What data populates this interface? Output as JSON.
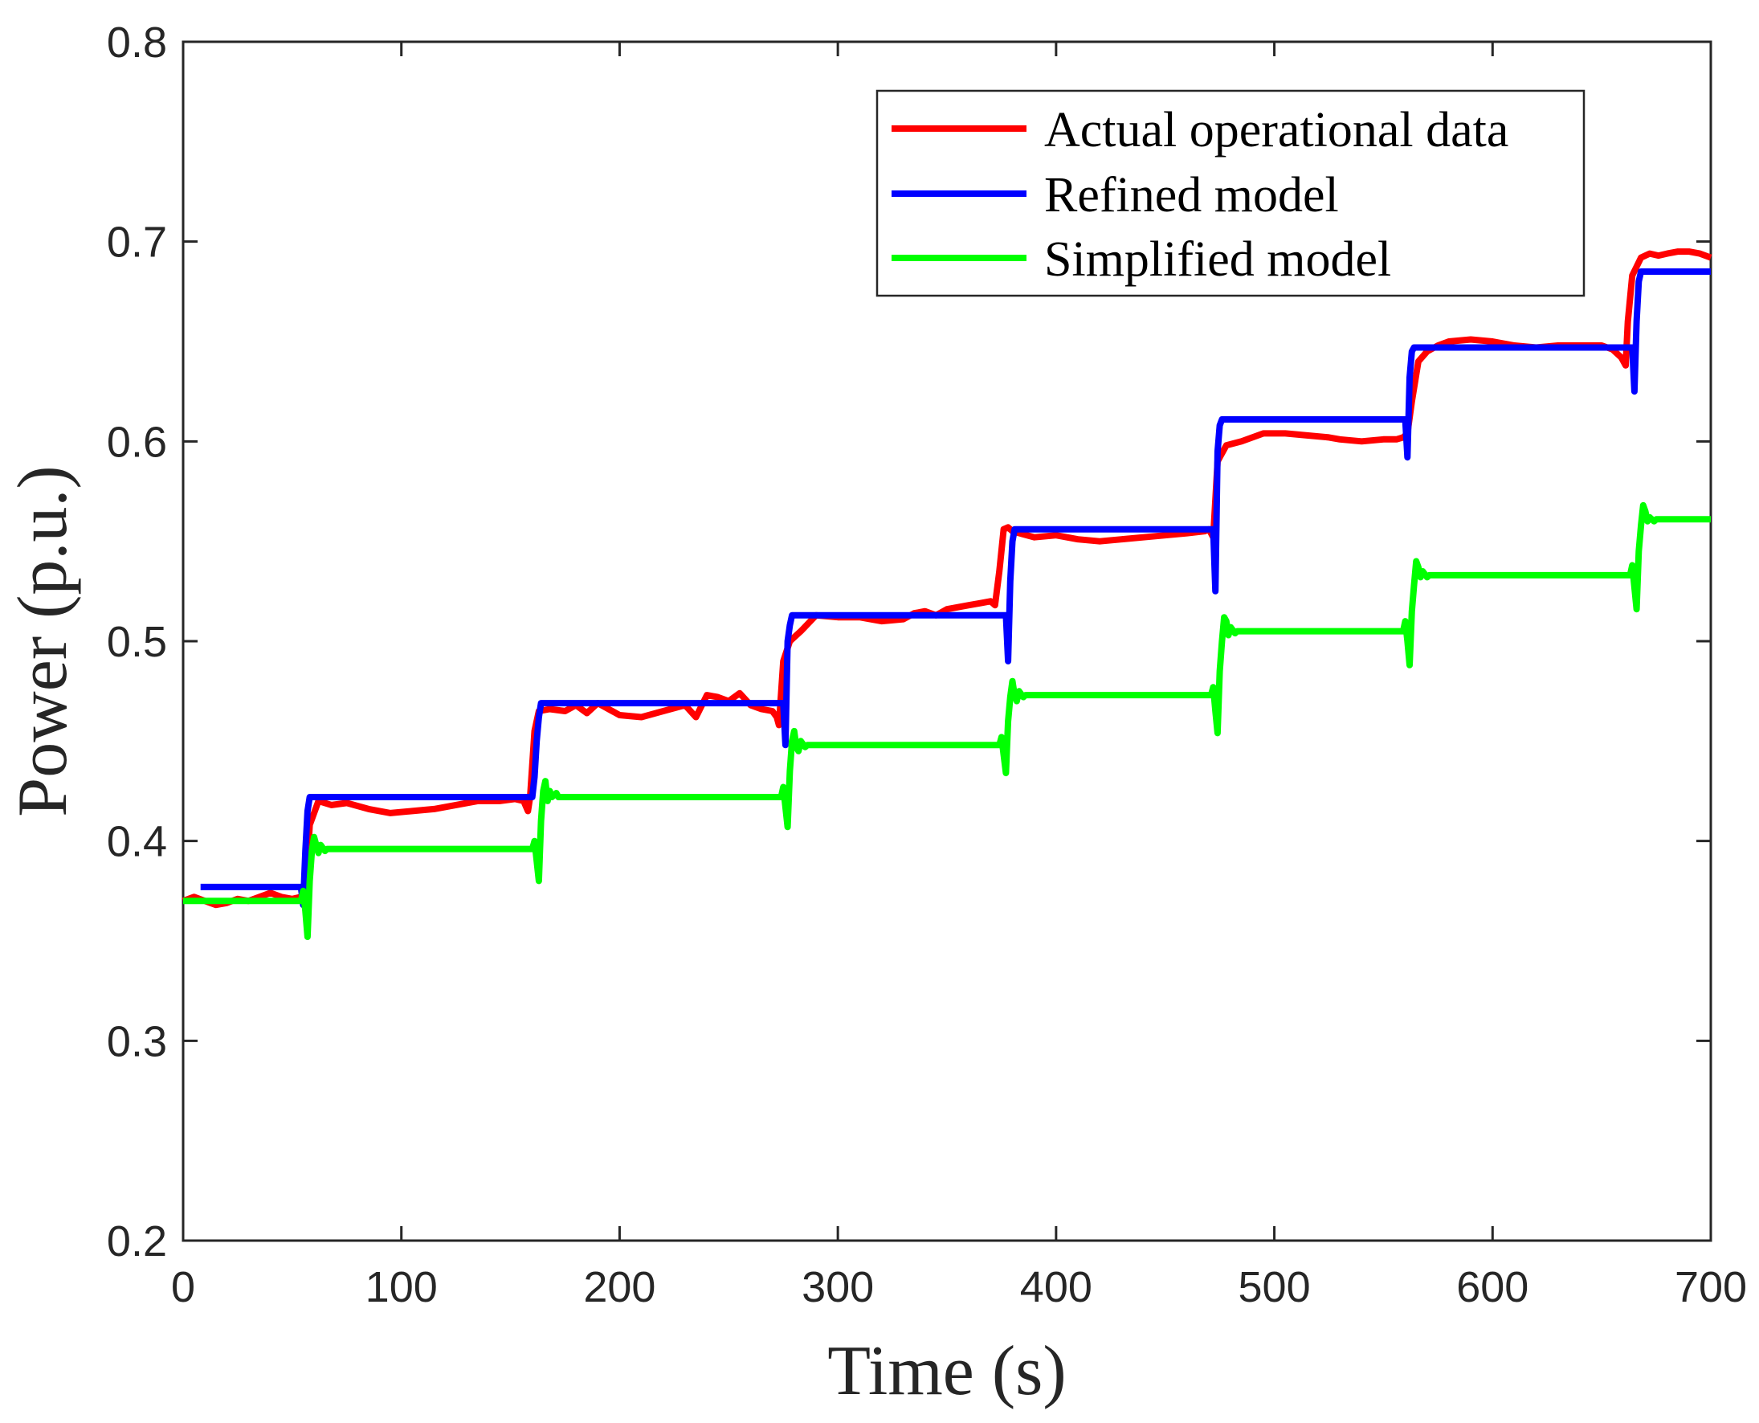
{
  "chart_data": {
    "type": "line",
    "title": "",
    "xlabel": "Time (s)",
    "ylabel": "Power (p.u.)",
    "xlim": [
      0,
      700
    ],
    "ylim": [
      0.2,
      0.8
    ],
    "xticks": [
      0,
      100,
      200,
      300,
      400,
      500,
      600,
      700
    ],
    "yticks": [
      0.2,
      0.3,
      0.4,
      0.5,
      0.6,
      0.7,
      0.8
    ],
    "xtick_labels": [
      "0",
      "100",
      "200",
      "300",
      "400",
      "500",
      "600",
      "700"
    ],
    "ytick_labels": [
      "0.2",
      "0.3",
      "0.4",
      "0.5",
      "0.6",
      "0.7",
      "0.8"
    ],
    "grid": false,
    "legend_position": "top-right",
    "series": [
      {
        "name": "Actual operational data",
        "color": "#ff0000",
        "x": [
          0,
          5,
          10,
          15,
          20,
          25,
          30,
          35,
          40,
          45,
          50,
          54,
          56,
          58,
          62,
          68,
          75,
          85,
          95,
          105,
          115,
          125,
          135,
          145,
          152,
          156,
          158,
          159,
          161,
          163,
          168,
          175,
          180,
          185,
          190,
          200,
          210,
          220,
          230,
          235,
          240,
          245,
          250,
          255,
          260,
          265,
          270,
          272,
          273,
          275,
          278,
          283,
          290,
          300,
          310,
          320,
          330,
          335,
          340,
          345,
          350,
          355,
          360,
          365,
          370,
          372,
          374,
          376,
          378,
          380,
          390,
          400,
          410,
          420,
          430,
          440,
          450,
          460,
          468,
          470,
          472,
          474,
          478,
          485,
          495,
          505,
          515,
          525,
          530,
          540,
          550,
          556,
          559,
          561,
          563,
          566,
          570,
          575,
          580,
          590,
          600,
          610,
          620,
          630,
          640,
          650,
          655,
          659,
          661,
          662,
          664,
          668,
          672,
          676,
          680,
          685,
          690,
          695,
          700
        ],
        "y": [
          0.37,
          0.372,
          0.37,
          0.368,
          0.369,
          0.371,
          0.37,
          0.372,
          0.374,
          0.372,
          0.371,
          0.372,
          0.37,
          0.408,
          0.42,
          0.418,
          0.419,
          0.416,
          0.414,
          0.415,
          0.416,
          0.418,
          0.42,
          0.42,
          0.421,
          0.42,
          0.415,
          0.422,
          0.455,
          0.465,
          0.466,
          0.465,
          0.468,
          0.464,
          0.469,
          0.463,
          0.462,
          0.465,
          0.468,
          0.462,
          0.473,
          0.472,
          0.47,
          0.474,
          0.468,
          0.466,
          0.465,
          0.462,
          0.458,
          0.49,
          0.5,
          0.505,
          0.513,
          0.512,
          0.512,
          0.51,
          0.511,
          0.514,
          0.515,
          0.513,
          0.516,
          0.517,
          0.518,
          0.519,
          0.52,
          0.518,
          0.535,
          0.556,
          0.557,
          0.555,
          0.552,
          0.553,
          0.551,
          0.55,
          0.551,
          0.552,
          0.553,
          0.554,
          0.555,
          0.556,
          0.552,
          0.59,
          0.598,
          0.6,
          0.604,
          0.604,
          0.603,
          0.602,
          0.601,
          0.6,
          0.601,
          0.601,
          0.602,
          0.604,
          0.62,
          0.64,
          0.645,
          0.648,
          0.65,
          0.651,
          0.65,
          0.648,
          0.647,
          0.648,
          0.648,
          0.648,
          0.646,
          0.642,
          0.638,
          0.66,
          0.683,
          0.692,
          0.694,
          0.693,
          0.694,
          0.695,
          0.695,
          0.694,
          0.692
        ]
      },
      {
        "name": "Refined model",
        "color": "#0000ff",
        "x": [
          8,
          54,
          55,
          56,
          57,
          58,
          160,
          161,
          162,
          163,
          164,
          275,
          276,
          277,
          278,
          279,
          377,
          378,
          379,
          380,
          381,
          472,
          473,
          474,
          475,
          476,
          560,
          561,
          562,
          563,
          564,
          664,
          665,
          666,
          667,
          668,
          700
        ],
        "y": [
          0.377,
          0.377,
          0.368,
          0.395,
          0.415,
          0.422,
          0.422,
          0.432,
          0.45,
          0.462,
          0.469,
          0.469,
          0.448,
          0.5,
          0.508,
          0.513,
          0.513,
          0.49,
          0.53,
          0.55,
          0.556,
          0.556,
          0.525,
          0.595,
          0.608,
          0.611,
          0.611,
          0.592,
          0.632,
          0.645,
          0.647,
          0.647,
          0.625,
          0.66,
          0.68,
          0.685,
          0.685
        ]
      },
      {
        "name": "Simplified model",
        "color": "#00ff00",
        "x": [
          0,
          54,
          55,
          56,
          57,
          58,
          59,
          60,
          61,
          62,
          63,
          65,
          66,
          160,
          161,
          162,
          163,
          164,
          165,
          166,
          167,
          168,
          169,
          171,
          172,
          274,
          275,
          276,
          277,
          278,
          279,
          280,
          281,
          282,
          283,
          285,
          286,
          374,
          375,
          376,
          377,
          378,
          379,
          380,
          381,
          382,
          383,
          385,
          386,
          471,
          472,
          473,
          474,
          475,
          476,
          477,
          478,
          479,
          480,
          482,
          483,
          559,
          560,
          561,
          562,
          563,
          564,
          565,
          566,
          567,
          568,
          570,
          571,
          663,
          664,
          665,
          666,
          667,
          668,
          669,
          670,
          671,
          672,
          674,
          675,
          700
        ],
        "y": [
          0.37,
          0.37,
          0.375,
          0.365,
          0.352,
          0.38,
          0.395,
          0.402,
          0.398,
          0.394,
          0.398,
          0.395,
          0.396,
          0.396,
          0.4,
          0.39,
          0.38,
          0.41,
          0.425,
          0.43,
          0.42,
          0.425,
          0.422,
          0.424,
          0.422,
          0.422,
          0.427,
          0.417,
          0.407,
          0.435,
          0.45,
          0.455,
          0.447,
          0.445,
          0.45,
          0.447,
          0.448,
          0.448,
          0.452,
          0.443,
          0.434,
          0.46,
          0.472,
          0.48,
          0.473,
          0.47,
          0.475,
          0.472,
          0.473,
          0.473,
          0.477,
          0.465,
          0.454,
          0.485,
          0.5,
          0.512,
          0.51,
          0.503,
          0.507,
          0.504,
          0.505,
          0.505,
          0.51,
          0.5,
          0.488,
          0.515,
          0.528,
          0.54,
          0.537,
          0.532,
          0.535,
          0.532,
          0.533,
          0.533,
          0.538,
          0.527,
          0.516,
          0.545,
          0.558,
          0.568,
          0.565,
          0.56,
          0.562,
          0.56,
          0.561,
          0.561
        ]
      }
    ]
  }
}
